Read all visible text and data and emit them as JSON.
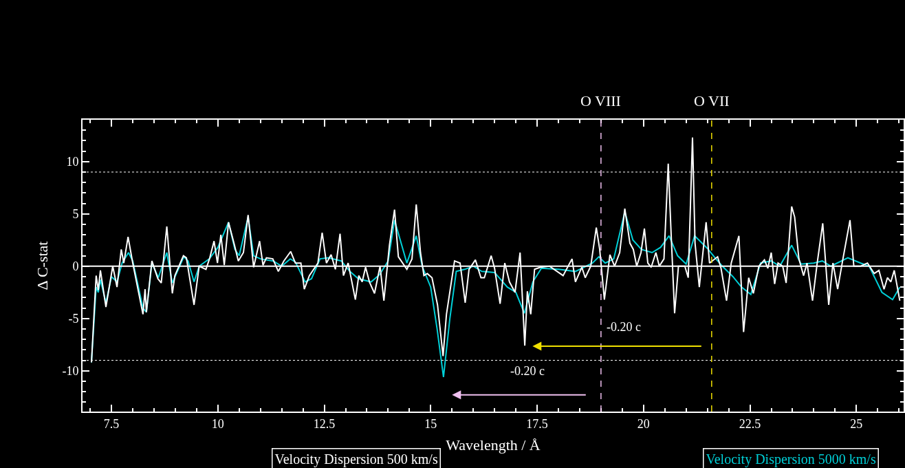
{
  "chart_data": {
    "type": "line",
    "xlabel": "Wavelength / Å",
    "ylabel": "Δ C-stat",
    "xlim": [
      6.82,
      26.11
    ],
    "ylim": [
      -13.9,
      14.0
    ],
    "xticks": [
      7.5,
      10,
      12.5,
      15,
      17.5,
      20,
      22.5,
      25,
      {
        "value": 7,
        "label": null
      },
      {
        "value": 8,
        "label": null
      },
      {
        "value": 8.5,
        "label": null
      },
      {
        "value": 9,
        "label": null
      },
      {
        "value": 9.5,
        "label": null
      },
      {
        "value": 10.5,
        "label": null
      },
      {
        "value": 11,
        "label": null
      },
      {
        "value": 11.5,
        "label": null
      },
      {
        "value": 12,
        "label": null
      },
      {
        "value": 13,
        "label": null
      },
      {
        "value": 13.5,
        "label": null
      },
      {
        "value": 14,
        "label": null
      },
      {
        "value": 14.5,
        "label": null
      },
      {
        "value": 15.5,
        "label": null
      },
      {
        "value": 16,
        "label": null
      },
      {
        "value": 16.5,
        "label": null
      },
      {
        "value": 17,
        "label": null
      },
      {
        "value": 18,
        "label": null
      },
      {
        "value": 18.5,
        "label": null
      },
      {
        "value": 19,
        "label": null
      },
      {
        "value": 19.5,
        "label": null
      },
      {
        "value": 20.5,
        "label": null
      },
      {
        "value": 21,
        "label": null
      },
      {
        "value": 21.5,
        "label": null
      },
      {
        "value": 22,
        "label": null
      },
      {
        "value": 23,
        "label": null
      },
      {
        "value": 23.5,
        "label": null
      },
      {
        "value": 24,
        "label": null
      },
      {
        "value": 24.5,
        "label": null
      },
      {
        "value": 25.5,
        "label": null
      },
      {
        "value": 26,
        "label": null
      }
    ],
    "yticks": [
      -10,
      -5,
      0,
      5,
      10,
      {
        "value": -13,
        "label": null
      },
      {
        "value": -12,
        "label": null
      },
      {
        "value": -11,
        "label": null
      },
      {
        "value": -9,
        "label": null
      },
      {
        "value": -8,
        "label": null
      },
      {
        "value": -7,
        "label": null
      },
      {
        "value": -6,
        "label": null
      },
      {
        "value": -4,
        "label": null
      },
      {
        "value": -3,
        "label": null
      },
      {
        "value": -2,
        "label": null
      },
      {
        "value": -1,
        "label": null
      },
      {
        "value": 1,
        "label": null
      },
      {
        "value": 2,
        "label": null
      },
      {
        "value": 3,
        "label": null
      },
      {
        "value": 4,
        "label": null
      },
      {
        "value": 6,
        "label": null
      },
      {
        "value": 7,
        "label": null
      },
      {
        "value": 8,
        "label": null
      },
      {
        "value": 9,
        "label": null
      },
      {
        "value": 11,
        "label": null
      },
      {
        "value": 12,
        "label": null
      },
      {
        "value": 13,
        "label": null
      }
    ],
    "grid": false,
    "legend": "bottom",
    "marker": "none",
    "line_style": "solid",
    "ref_lines": [
      {
        "axis": "y",
        "value": 0,
        "label": null,
        "color": "#ffffff",
        "line_style": "solid"
      },
      {
        "axis": "y",
        "value": 9,
        "label": null,
        "color": "#ffffff",
        "line_style": "dotted"
      },
      {
        "axis": "y",
        "value": -9,
        "label": null,
        "color": "#ffffff",
        "line_style": "dotted"
      },
      {
        "axis": "x",
        "value": 19.0,
        "label": "O VIII",
        "color": "#f0c0f0",
        "line_style": "dashed"
      },
      {
        "axis": "x",
        "value": 21.6,
        "label": "O VII",
        "color": "#f0e000",
        "line_style": "dashed"
      }
    ],
    "annotations": [
      "-0.20 c",
      "-0.20 c"
    ],
    "series": [
      {
        "name": "Velocity Dispersion 5000 km/s",
        "color": "#00d0d8",
        "x": [
          7.03,
          7.14,
          7.19,
          7.24,
          7.37,
          7.5,
          7.63,
          7.75,
          7.9,
          8.0,
          8.24,
          8.32,
          8.45,
          8.6,
          8.8,
          8.93,
          9.2,
          9.3,
          9.44,
          9.56,
          9.8,
          10.0,
          10.25,
          10.4,
          10.5,
          10.71,
          10.84,
          11.0,
          11.3,
          11.5,
          11.7,
          11.82,
          12.05,
          12.2,
          12.4,
          12.6,
          12.9,
          13.1,
          13.3,
          13.6,
          13.8,
          14.0,
          14.15,
          14.44,
          14.66,
          14.8,
          15.0,
          15.15,
          15.3,
          15.45,
          15.6,
          15.8,
          16.0,
          16.2,
          16.5,
          16.8,
          17.0,
          17.2,
          17.4,
          17.6,
          18.0,
          18.4,
          18.8,
          18.95,
          19.1,
          19.3,
          19.56,
          19.75,
          19.95,
          20.2,
          20.4,
          20.6,
          20.8,
          21.0,
          21.2,
          21.5,
          21.7,
          21.85,
          22.1,
          22.3,
          22.52,
          22.75,
          23.0,
          23.2,
          23.48,
          23.7,
          24.0,
          24.2,
          24.4,
          24.8,
          25.1,
          25.3,
          25.6,
          25.85,
          26.02
        ],
        "values": [
          -9.2,
          -2.0,
          -2.5,
          -1.3,
          -3.5,
          -1.0,
          -1.5,
          0.3,
          1.3,
          0.5,
          -4.0,
          -4.4,
          0.3,
          -1.1,
          1.3,
          -1.6,
          0.9,
          0.5,
          -1.5,
          0,
          0.7,
          1.8,
          4.2,
          1.6,
          1.0,
          4.7,
          1.0,
          0.7,
          0.5,
          0,
          0.7,
          0.4,
          -1.5,
          -1.2,
          0.7,
          0.8,
          0.5,
          -0.5,
          -1.2,
          -1.5,
          -0.8,
          0.5,
          4.4,
          0.3,
          2.9,
          0,
          -2.0,
          -6.0,
          -10.6,
          -5.0,
          -0.5,
          -0.3,
          0,
          -0.5,
          -0.6,
          -2.0,
          -2.5,
          -4.5,
          -1.5,
          -0.2,
          -0.3,
          -0.5,
          0.3,
          0.9,
          0.3,
          0.7,
          5.2,
          2.5,
          1.6,
          1.3,
          1.8,
          2.9,
          1.0,
          0.2,
          2.9,
          1.7,
          0.7,
          0,
          -1.0,
          -2.0,
          -2.7,
          0.3,
          0.5,
          0,
          2.0,
          0.2,
          0.3,
          0.5,
          0,
          0.8,
          0.3,
          0,
          -2.5,
          -3.2,
          -2.0
        ]
      },
      {
        "name": "Velocity Dispersion 500 km/s",
        "color": "#ffffff",
        "x": [
          7.03,
          7.14,
          7.19,
          7.24,
          7.37,
          7.53,
          7.63,
          7.73,
          7.79,
          7.89,
          8.0,
          8.24,
          8.29,
          8.32,
          8.45,
          8.59,
          8.67,
          8.8,
          8.93,
          8.99,
          9.19,
          9.26,
          9.44,
          9.56,
          9.72,
          9.81,
          9.91,
          9.99,
          10.07,
          10.15,
          10.25,
          10.39,
          10.48,
          10.6,
          10.71,
          10.84,
          10.98,
          11.06,
          11.14,
          11.29,
          11.42,
          11.55,
          11.71,
          11.82,
          11.95,
          12.03,
          12.15,
          12.35,
          12.45,
          12.55,
          12.66,
          12.76,
          12.87,
          12.95,
          13.06,
          13.23,
          13.31,
          13.39,
          13.47,
          13.56,
          13.68,
          13.81,
          13.9,
          14.03,
          14.15,
          14.24,
          14.44,
          14.56,
          14.66,
          14.76,
          14.84,
          14.92,
          15.03,
          15.16,
          15.29,
          15.37,
          15.56,
          15.69,
          15.81,
          15.9,
          16.05,
          16.18,
          16.26,
          16.42,
          16.5,
          16.63,
          16.74,
          16.85,
          16.98,
          17.1,
          17.21,
          17.27,
          17.35,
          17.44,
          17.58,
          17.79,
          18.11,
          18.32,
          18.4,
          18.55,
          18.63,
          18.76,
          18.89,
          18.97,
          19.08,
          19.21,
          19.32,
          19.44,
          19.56,
          19.68,
          19.76,
          19.84,
          19.94,
          20.02,
          20.1,
          20.18,
          20.29,
          20.37,
          20.48,
          20.58,
          20.65,
          20.73,
          20.82,
          20.97,
          21.05,
          21.15,
          21.21,
          21.31,
          21.47,
          21.55,
          21.74,
          21.82,
          21.95,
          22.06,
          22.24,
          22.35,
          22.47,
          22.58,
          22.71,
          22.84,
          22.92,
          23.0,
          23.08,
          23.16,
          23.27,
          23.35,
          23.42,
          23.48,
          23.55,
          23.65,
          23.76,
          23.84,
          23.97,
          24.08,
          24.21,
          24.35,
          24.45,
          24.56,
          24.68,
          24.85,
          24.94,
          25.1,
          25.26,
          25.42,
          25.53,
          25.65,
          25.73,
          25.81,
          25.89,
          26.02
        ],
        "values": [
          -9.2,
          -0.9,
          -2.3,
          -0.4,
          -3.9,
          0,
          -2.0,
          1.6,
          0.3,
          2.8,
          0.3,
          -4.6,
          -2.2,
          -4.4,
          0.5,
          -1.2,
          -1.6,
          3.8,
          -2.6,
          -0.9,
          1.0,
          0.8,
          -3.7,
          0,
          -0.3,
          0.8,
          2.4,
          0.3,
          3.0,
          0.1,
          4.2,
          2.0,
          0.5,
          1.3,
          4.9,
          -0.1,
          2.4,
          0.1,
          0.8,
          0.7,
          -0.5,
          0.5,
          1.4,
          0.3,
          0.3,
          -2.2,
          -0.9,
          0.3,
          3.2,
          0.3,
          1.1,
          -0.3,
          3.1,
          -0.9,
          0.3,
          -3.2,
          -0.9,
          -1.5,
          -0.1,
          -1.5,
          -2.6,
          0,
          -3.3,
          2.0,
          5.4,
          0.9,
          -0.3,
          0.7,
          5.9,
          1.3,
          -0.9,
          -0.7,
          -1.1,
          -3.7,
          -8.6,
          -4.6,
          0.5,
          0.3,
          -3.5,
          -0.3,
          0.6,
          -1.1,
          -1.1,
          1.0,
          -0.2,
          -3.6,
          0.3,
          -1.5,
          -2.5,
          1.3,
          -7.6,
          -2.4,
          -4.6,
          -0.3,
          -0.1,
          0,
          -0.9,
          0.7,
          -1.5,
          -0.1,
          -1.1,
          0,
          3.7,
          1.6,
          -3.2,
          1.1,
          0,
          1.3,
          5.5,
          2.2,
          1.6,
          0,
          1.3,
          3.6,
          0.3,
          -0.1,
          1.3,
          0,
          0.7,
          9.8,
          2.9,
          -4.5,
          0,
          0,
          -1.1,
          12.3,
          2.2,
          -2.0,
          4.2,
          0.3,
          0.9,
          -0.2,
          -3.3,
          0.3,
          2.9,
          -6.3,
          -1.1,
          -2.6,
          0,
          0.6,
          -0.2,
          1.3,
          -1.7,
          0.3,
          0,
          -1.6,
          2.4,
          5.7,
          4.7,
          0.7,
          -0.9,
          0.3,
          -3.3,
          0.3,
          4.1,
          -3.7,
          0.3,
          -2.2,
          0.6,
          4.4,
          0,
          0,
          0.3,
          -0.7,
          -0.4,
          -2.2,
          -1.1,
          -1.5,
          -0.4,
          -3.3
        ]
      }
    ]
  }
}
